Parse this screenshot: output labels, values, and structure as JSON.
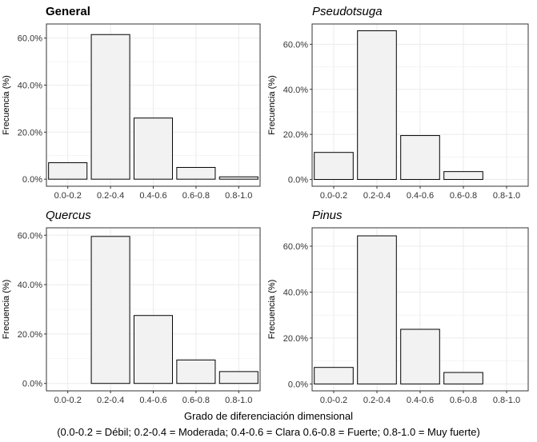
{
  "chart_data": [
    {
      "type": "bar",
      "title": "General",
      "title_italic": false,
      "ylabel": "Frecuencia (%)",
      "categories": [
        "0.0-0.2",
        "0.2-0.4",
        "0.4-0.6",
        "0.6-0.8",
        "0.8-1.0"
      ],
      "values": [
        7.0,
        61.5,
        26.0,
        5.0,
        1.0
      ],
      "ytick_labels": [
        "0.0%",
        "20.0%",
        "40.0%",
        "60.0%"
      ],
      "yticks": [
        0,
        20,
        40,
        60
      ],
      "ylim": [
        -3,
        66
      ]
    },
    {
      "type": "bar",
      "title": "Pseudotsuga",
      "title_italic": true,
      "ylabel": "Frecuencia (%)",
      "categories": [
        "0.0-0.2",
        "0.2-0.4",
        "0.4-0.6",
        "0.6-0.8",
        "0.8-1.0"
      ],
      "values": [
        12.0,
        66.0,
        19.5,
        3.5,
        0
      ],
      "ytick_labels": [
        "0.0%",
        "20.0%",
        "40.0%",
        "60.0%"
      ],
      "yticks": [
        0,
        20,
        40,
        60
      ],
      "ylim": [
        -3,
        69
      ]
    },
    {
      "type": "bar",
      "title": "Quercus",
      "title_italic": true,
      "ylabel": "Frecuencia (%)",
      "categories": [
        "0.0-0.2",
        "0.2-0.4",
        "0.4-0.6",
        "0.6-0.8",
        "0.8-1.0"
      ],
      "values": [
        0,
        59.5,
        27.5,
        9.5,
        4.8
      ],
      "ytick_labels": [
        "0.0%",
        "20.0%",
        "40.0%",
        "60.0%"
      ],
      "yticks": [
        0,
        20,
        40,
        60
      ],
      "ylim": [
        -3,
        63
      ]
    },
    {
      "type": "bar",
      "title": "Pinus",
      "title_italic": true,
      "ylabel": "Frecuencia (%)",
      "categories": [
        "0.0-0.2",
        "0.2-0.4",
        "0.4-0.6",
        "0.6-0.8",
        "0.8-1.0"
      ],
      "values": [
        7.2,
        64.5,
        23.8,
        5.0,
        0
      ],
      "ytick_labels": [
        "0.0%",
        "20.0%",
        "40.0%",
        "60.0%"
      ],
      "yticks": [
        0,
        20,
        40,
        60
      ],
      "ylim": [
        -3,
        68
      ]
    }
  ],
  "xlabel": "Grado de diferenciación dimensional",
  "xlabel_note": "(0.0-0.2 = Débil; 0.2-0.4 = Moderada; 0.4-0.6 = Clara 0.6-0.8 = Fuerte; 0.8-1.0 = Muy fuerte)",
  "colors": {
    "bar_fill": "#f2f2f2",
    "bar_stroke": "#000000",
    "panel_border": "#333333",
    "grid": "#ebebeb"
  }
}
